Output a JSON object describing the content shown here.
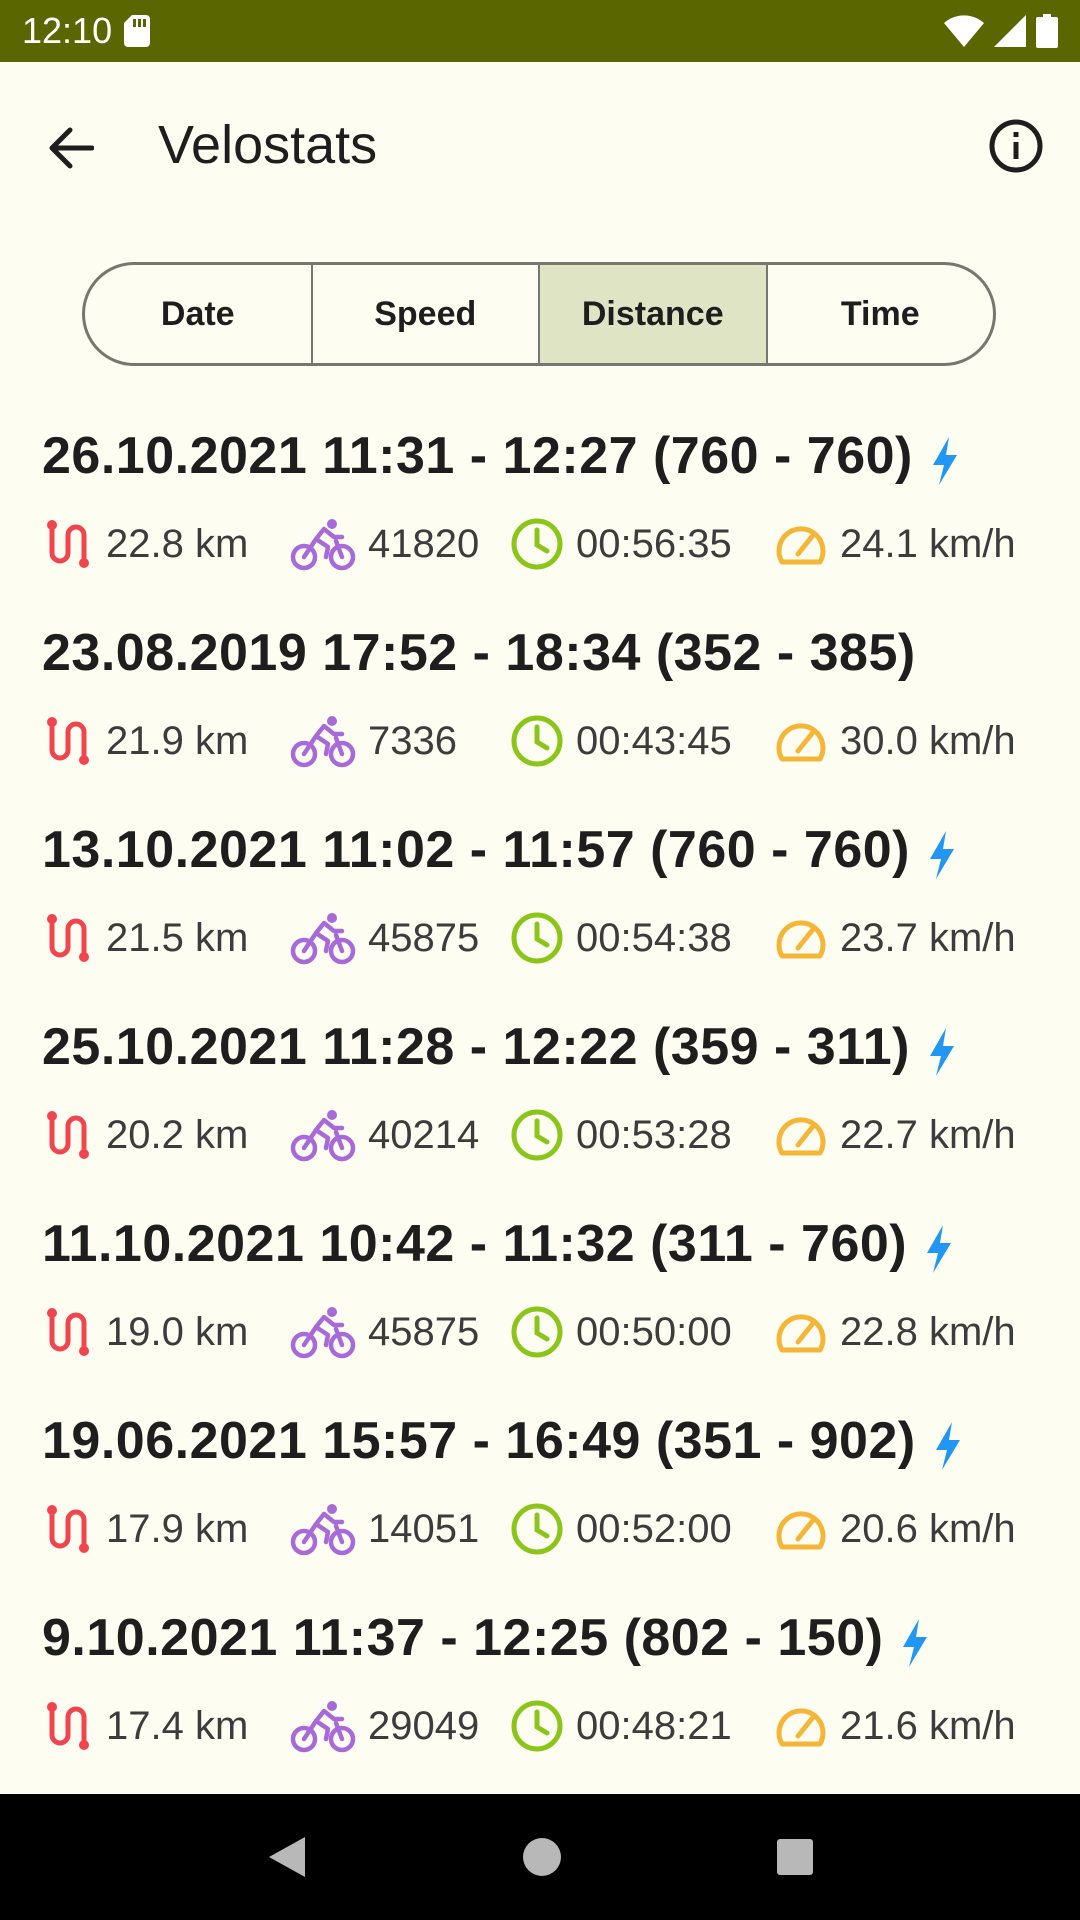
{
  "status_bar": {
    "time": "12:10"
  },
  "app_bar": {
    "title": "Velostats"
  },
  "sort_tabs": [
    {
      "label": "Date",
      "selected": false
    },
    {
      "label": "Speed",
      "selected": false
    },
    {
      "label": "Distance",
      "selected": true
    },
    {
      "label": "Time",
      "selected": false
    }
  ],
  "rides": [
    {
      "title": "26.10.2021 11:31 - 12:27 (760 - 760)",
      "electric": true,
      "distance": "22.8 km",
      "cadence": "41820",
      "duration": "00:56:35",
      "speed": "24.1 km/h"
    },
    {
      "title": "23.08.2019 17:52 - 18:34 (352 - 385)",
      "electric": false,
      "distance": "21.9 km",
      "cadence": "7336",
      "duration": "00:43:45",
      "speed": "30.0 km/h"
    },
    {
      "title": "13.10.2021 11:02 - 11:57 (760 - 760)",
      "electric": true,
      "distance": "21.5 km",
      "cadence": "45875",
      "duration": "00:54:38",
      "speed": "23.7 km/h"
    },
    {
      "title": "25.10.2021 11:28 - 12:22 (359 - 311)",
      "electric": true,
      "distance": "20.2 km",
      "cadence": "40214",
      "duration": "00:53:28",
      "speed": "22.7 km/h"
    },
    {
      "title": "11.10.2021 10:42 - 11:32 (311 - 760)",
      "electric": true,
      "distance": "19.0 km",
      "cadence": "45875",
      "duration": "00:50:00",
      "speed": "22.8 km/h"
    },
    {
      "title": "19.06.2021 15:57 - 16:49 (351 - 902)",
      "electric": true,
      "distance": "17.9 km",
      "cadence": "14051",
      "duration": "00:52:00",
      "speed": "20.6 km/h"
    },
    {
      "title": "9.10.2021 11:37 - 12:25 (802 - 150)",
      "electric": true,
      "distance": "17.4 km",
      "cadence": "29049",
      "duration": "00:48:21",
      "speed": "21.6 km/h"
    }
  ],
  "colors": {
    "status_bar": "#5a6600",
    "background": "#fdfdf2",
    "selected_tab": "#dfe5c4",
    "distance_icon": "#f0454f",
    "bike_icon": "#a86ad8",
    "clock_icon": "#8cc51a",
    "speed_icon": "#f5b637",
    "bolt_icon": "#2196f3"
  }
}
